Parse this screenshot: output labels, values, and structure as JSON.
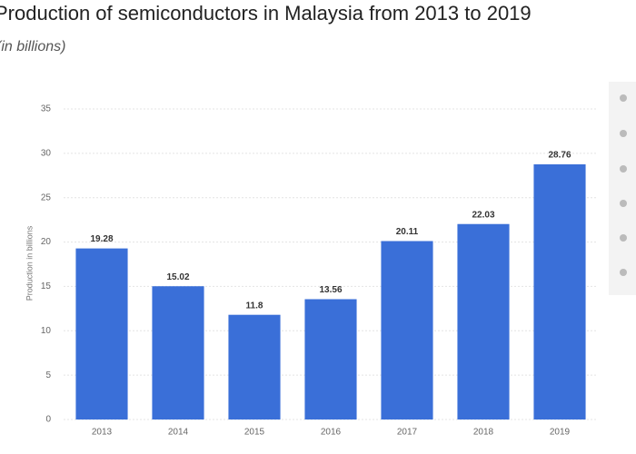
{
  "chart_data": {
    "type": "bar",
    "title": "Production of semiconductors in Malaysia from 2013 to 2019",
    "subtitle": "(in billions)",
    "y_label": "Production in billions",
    "categories": [
      "2013",
      "2014",
      "2015",
      "2016",
      "2017",
      "2018",
      "2019"
    ],
    "values": [
      19.28,
      15.02,
      11.8,
      13.56,
      20.11,
      22.03,
      28.76
    ],
    "color": "#3a6fd8",
    "ylim": [
      0,
      35
    ],
    "yticks": [
      0,
      5,
      10,
      15,
      20,
      25,
      30,
      35
    ],
    "grid": true
  }
}
